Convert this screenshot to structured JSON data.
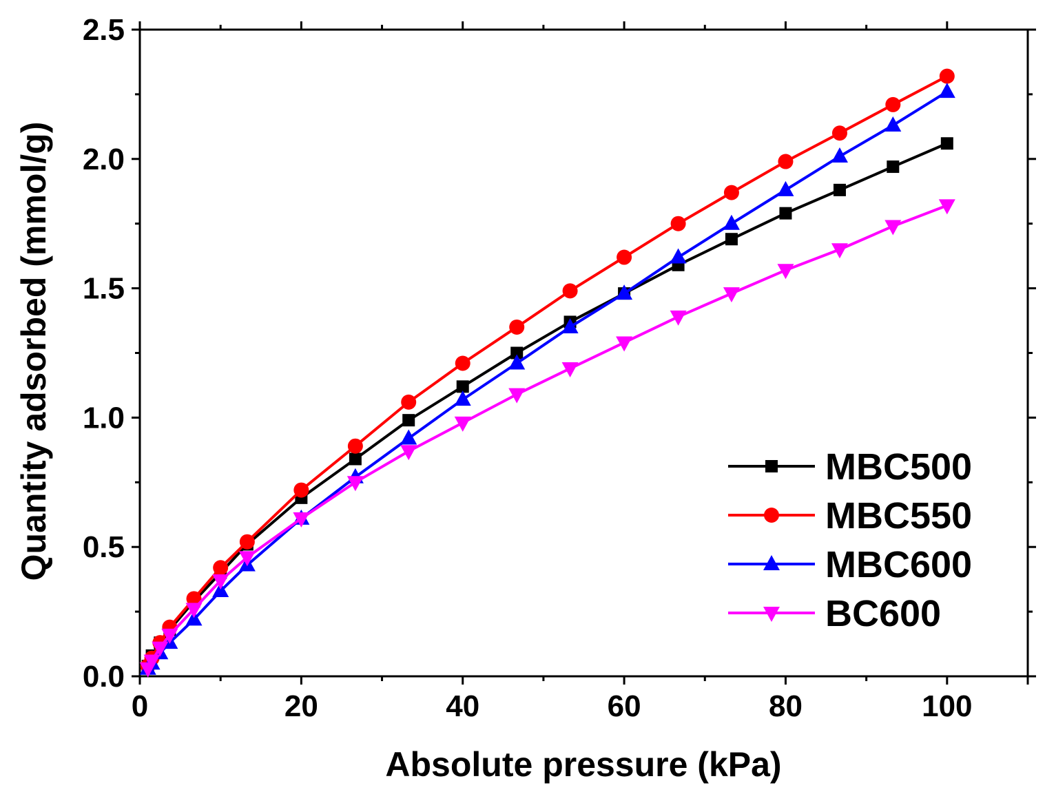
{
  "chart_data": {
    "type": "line",
    "title": "",
    "xlabel": "Absolute pressure (kPa)",
    "ylabel": "Quantity adsorbed (mmol/g)",
    "xlim": [
      0,
      110
    ],
    "ylim": [
      0,
      2.5
    ],
    "x_ticks": [
      0,
      20,
      40,
      60,
      80,
      100
    ],
    "x_tick_labels": [
      "0",
      "20",
      "40",
      "60",
      "80",
      "100"
    ],
    "y_ticks": [
      0,
      0.5,
      1.0,
      1.5,
      2.0,
      2.5
    ],
    "y_tick_labels": [
      "0.0",
      "0.5",
      "1.0",
      "1.5",
      "2.0",
      "2.5"
    ],
    "grid": false,
    "legend_position": "bottom-right",
    "series": [
      {
        "name": "MBC500",
        "color": "#000000",
        "marker": "square",
        "x": [
          1.0,
          1.5,
          2.5,
          3.7,
          6.7,
          10.0,
          13.3,
          20.0,
          26.7,
          33.3,
          40.0,
          46.7,
          53.3,
          60.0,
          66.7,
          73.3,
          80.0,
          86.7,
          93.3,
          100.0
        ],
        "y": [
          0.04,
          0.08,
          0.13,
          0.18,
          0.29,
          0.4,
          0.51,
          0.69,
          0.84,
          0.99,
          1.12,
          1.25,
          1.37,
          1.48,
          1.59,
          1.69,
          1.79,
          1.88,
          1.97,
          2.06
        ]
      },
      {
        "name": "MBC550",
        "color": "#ff0000",
        "marker": "circle",
        "x": [
          1.0,
          1.5,
          2.5,
          3.7,
          6.7,
          10.0,
          13.3,
          20.0,
          26.7,
          33.3,
          40.0,
          46.7,
          53.3,
          60.0,
          66.7,
          73.3,
          80.0,
          86.7,
          93.3,
          100.0
        ],
        "y": [
          0.04,
          0.07,
          0.13,
          0.19,
          0.3,
          0.42,
          0.52,
          0.72,
          0.89,
          1.06,
          1.21,
          1.35,
          1.49,
          1.62,
          1.75,
          1.87,
          1.99,
          2.1,
          2.21,
          2.32
        ]
      },
      {
        "name": "MBC600",
        "color": "#0000ff",
        "marker": "triangle-up",
        "x": [
          1.0,
          1.5,
          2.5,
          3.7,
          6.7,
          10.0,
          13.3,
          20.0,
          26.7,
          33.3,
          40.0,
          46.7,
          53.3,
          60.0,
          66.7,
          73.3,
          80.0,
          86.7,
          93.3,
          100.0
        ],
        "y": [
          0.03,
          0.05,
          0.09,
          0.13,
          0.22,
          0.33,
          0.43,
          0.61,
          0.77,
          0.92,
          1.07,
          1.21,
          1.35,
          1.48,
          1.62,
          1.75,
          1.88,
          2.01,
          2.13,
          2.26
        ]
      },
      {
        "name": "BC600",
        "color": "#ff00ff",
        "marker": "triangle-down",
        "x": [
          1.0,
          1.5,
          2.5,
          3.7,
          6.7,
          10.0,
          13.3,
          20.0,
          26.7,
          33.3,
          40.0,
          46.7,
          53.3,
          60.0,
          66.7,
          73.3,
          80.0,
          86.7,
          93.3,
          100.0
        ],
        "y": [
          0.03,
          0.06,
          0.11,
          0.16,
          0.26,
          0.37,
          0.46,
          0.61,
          0.75,
          0.87,
          0.98,
          1.09,
          1.19,
          1.29,
          1.39,
          1.48,
          1.57,
          1.65,
          1.74,
          1.82
        ]
      }
    ]
  }
}
